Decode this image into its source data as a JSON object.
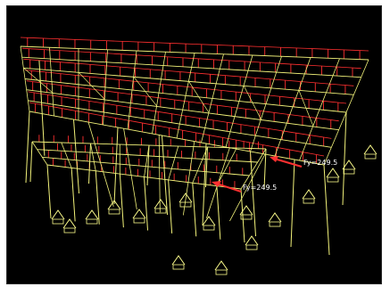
{
  "viewport": {
    "background": "#000000",
    "colors": {
      "frame_member": "#f2f27a",
      "load_arrow": "#ff3030",
      "support": "#fafa8a",
      "node": "#ffffff"
    }
  },
  "force_labels": [
    {
      "text": "Fy=249.5"
    },
    {
      "text": "Fy=249.5"
    }
  ]
}
